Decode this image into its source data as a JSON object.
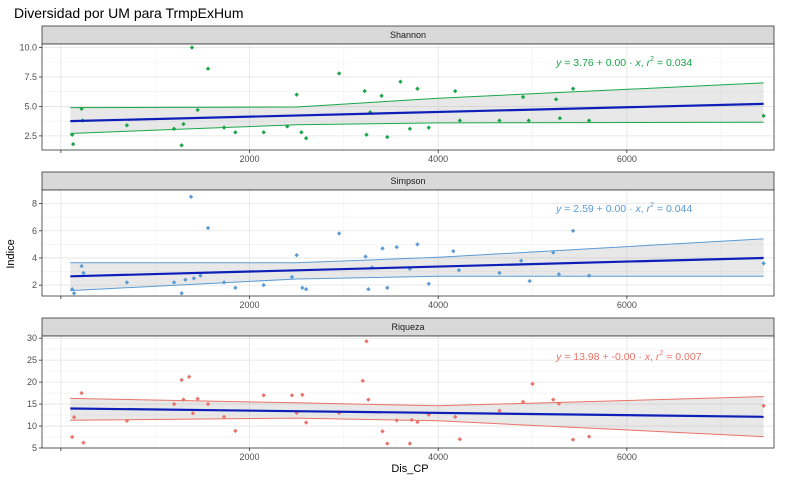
{
  "title": "Diversidad por UM para TrmpExHum",
  "xlabel": "Dis_CP",
  "ylabel": "Indice",
  "x_ticks": [
    0,
    2000,
    4000,
    6000
  ],
  "x_ticks_labeled": [
    2000,
    4000,
    6000
  ],
  "xlim": [
    -200,
    7560
  ],
  "chart_data": [
    {
      "type": "scatter",
      "panel": "Shannon",
      "color": "#1aa64a",
      "equation": "y = 3.76 + 0.00 · x,  r² = 0.034",
      "eq_parts": {
        "a": "3.76",
        "op": "+",
        "b": "0.00",
        "r2": "0.034"
      },
      "ylim": [
        1.3,
        10.3
      ],
      "y_ticks": [
        2.5,
        5.0,
        7.5,
        10.0
      ],
      "y_tick_labels": [
        "2.5",
        "5.0",
        "7.5",
        "10.0"
      ],
      "fit": {
        "x0": 100,
        "y0": 3.75,
        "x1": 7450,
        "y1": 5.22
      },
      "band": {
        "lower": [
          [
            100,
            2.7
          ],
          [
            2500,
            3.45
          ],
          [
            4000,
            3.6
          ],
          [
            7450,
            3.65
          ]
        ],
        "upper": [
          [
            100,
            4.9
          ],
          [
            2500,
            4.95
          ],
          [
            4000,
            5.7
          ],
          [
            7450,
            7.0
          ]
        ]
      },
      "points": [
        [
          120,
          2.6
        ],
        [
          130,
          1.8
        ],
        [
          220,
          4.8
        ],
        [
          230,
          3.8
        ],
        [
          700,
          3.4
        ],
        [
          1200,
          3.1
        ],
        [
          1280,
          1.7
        ],
        [
          1300,
          3.5
        ],
        [
          1390,
          10.0
        ],
        [
          1450,
          4.7
        ],
        [
          1560,
          8.2
        ],
        [
          1730,
          3.2
        ],
        [
          1850,
          2.8
        ],
        [
          2150,
          2.8
        ],
        [
          2400,
          3.3
        ],
        [
          2500,
          6.0
        ],
        [
          2550,
          2.8
        ],
        [
          2600,
          2.3
        ],
        [
          2950,
          7.8
        ],
        [
          3220,
          6.3
        ],
        [
          3240,
          2.6
        ],
        [
          3280,
          4.5
        ],
        [
          3400,
          5.9
        ],
        [
          3460,
          2.4
        ],
        [
          3600,
          7.1
        ],
        [
          3700,
          3.1
        ],
        [
          3780,
          6.5
        ],
        [
          3900,
          3.2
        ],
        [
          4180,
          6.3
        ],
        [
          4230,
          3.8
        ],
        [
          4650,
          3.8
        ],
        [
          4900,
          5.8
        ],
        [
          4960,
          3.8
        ],
        [
          5250,
          5.6
        ],
        [
          5290,
          4.0
        ],
        [
          5430,
          6.5
        ],
        [
          5600,
          3.8
        ],
        [
          7450,
          4.2
        ]
      ]
    },
    {
      "type": "scatter",
      "panel": "Simpson",
      "color": "#5b9bd5",
      "equation": "y = 2.59 + 0.00 · x,  r² = 0.044",
      "eq_parts": {
        "a": "2.59",
        "op": "+",
        "b": "0.00",
        "r2": "0.044"
      },
      "ylim": [
        1.2,
        9.0
      ],
      "y_ticks": [
        2,
        4,
        6,
        8
      ],
      "y_tick_labels": [
        "2",
        "4",
        "6",
        "8"
      ],
      "fit": {
        "x0": 100,
        "y0": 2.65,
        "x1": 7450,
        "y1": 4.0
      },
      "band": {
        "lower": [
          [
            100,
            1.6
          ],
          [
            2500,
            2.45
          ],
          [
            4000,
            2.65
          ],
          [
            7450,
            2.65
          ]
        ],
        "upper": [
          [
            100,
            3.65
          ],
          [
            2500,
            3.65
          ],
          [
            4000,
            4.05
          ],
          [
            7450,
            5.4
          ]
        ]
      },
      "points": [
        [
          120,
          1.7
        ],
        [
          140,
          1.4
        ],
        [
          220,
          3.4
        ],
        [
          240,
          2.9
        ],
        [
          700,
          2.2
        ],
        [
          1200,
          2.2
        ],
        [
          1280,
          1.4
        ],
        [
          1320,
          2.4
        ],
        [
          1380,
          8.5
        ],
        [
          1410,
          2.5
        ],
        [
          1480,
          2.7
        ],
        [
          1560,
          6.2
        ],
        [
          1730,
          2.2
        ],
        [
          1850,
          1.8
        ],
        [
          2150,
          2.0
        ],
        [
          2450,
          2.6
        ],
        [
          2500,
          4.2
        ],
        [
          2560,
          1.8
        ],
        [
          2600,
          1.7
        ],
        [
          2950,
          5.8
        ],
        [
          3230,
          4.1
        ],
        [
          3260,
          1.7
        ],
        [
          3300,
          3.3
        ],
        [
          3410,
          4.7
        ],
        [
          3460,
          1.8
        ],
        [
          3560,
          4.8
        ],
        [
          3700,
          3.2
        ],
        [
          3780,
          5.0
        ],
        [
          3900,
          2.1
        ],
        [
          4160,
          4.5
        ],
        [
          4220,
          3.1
        ],
        [
          4650,
          2.9
        ],
        [
          4880,
          3.8
        ],
        [
          4970,
          2.3
        ],
        [
          5220,
          4.4
        ],
        [
          5280,
          2.8
        ],
        [
          5430,
          6.0
        ],
        [
          5600,
          2.7
        ],
        [
          7450,
          3.6
        ]
      ]
    },
    {
      "type": "scatter",
      "panel": "Riqueza",
      "color": "#e8746a",
      "equation": "y = 13.98 + -0.00 · x,  r² = 0.007",
      "eq_parts": {
        "a": "13.98",
        "op": "+",
        "b": "-0.00",
        "r2": "0.007"
      },
      "ylim": [
        5,
        30.5
      ],
      "y_ticks": [
        5,
        10,
        15,
        20,
        25,
        30
      ],
      "y_tick_labels": [
        "5",
        "10",
        "15",
        "20",
        "25",
        "30"
      ],
      "fit": {
        "x0": 100,
        "y0": 14.0,
        "x1": 7450,
        "y1": 12.1
      },
      "band": {
        "lower": [
          [
            100,
            11.3
          ],
          [
            2500,
            11.8
          ],
          [
            4000,
            11.2
          ],
          [
            7450,
            7.6
          ]
        ],
        "upper": [
          [
            100,
            16.3
          ],
          [
            2500,
            15.3
          ],
          [
            4000,
            14.6
          ],
          [
            7450,
            16.7
          ]
        ]
      },
      "points": [
        [
          120,
          7.5
        ],
        [
          140,
          12.0
        ],
        [
          220,
          17.5
        ],
        [
          240,
          6.2
        ],
        [
          700,
          11.2
        ],
        [
          1200,
          15.0
        ],
        [
          1280,
          20.5
        ],
        [
          1300,
          16.0
        ],
        [
          1360,
          21.2
        ],
        [
          1400,
          12.9
        ],
        [
          1450,
          16.2
        ],
        [
          1560,
          15.0
        ],
        [
          1730,
          12.1
        ],
        [
          1850,
          8.9
        ],
        [
          2150,
          17.0
        ],
        [
          2450,
          17.0
        ],
        [
          2500,
          13.0
        ],
        [
          2560,
          17.1
        ],
        [
          2600,
          10.8
        ],
        [
          2950,
          13.0
        ],
        [
          3200,
          20.3
        ],
        [
          3240,
          29.3
        ],
        [
          3260,
          16.0
        ],
        [
          3410,
          8.8
        ],
        [
          3460,
          6.0
        ],
        [
          3560,
          11.3
        ],
        [
          3700,
          6.0
        ],
        [
          3720,
          11.4
        ],
        [
          3780,
          10.9
        ],
        [
          3900,
          12.6
        ],
        [
          4180,
          12.1
        ],
        [
          4230,
          7.0
        ],
        [
          4650,
          13.5
        ],
        [
          4900,
          15.5
        ],
        [
          5000,
          19.6
        ],
        [
          5220,
          16.0
        ],
        [
          5280,
          15.1
        ],
        [
          5430,
          6.9
        ],
        [
          5600,
          7.6
        ],
        [
          7450,
          14.6
        ]
      ]
    }
  ]
}
